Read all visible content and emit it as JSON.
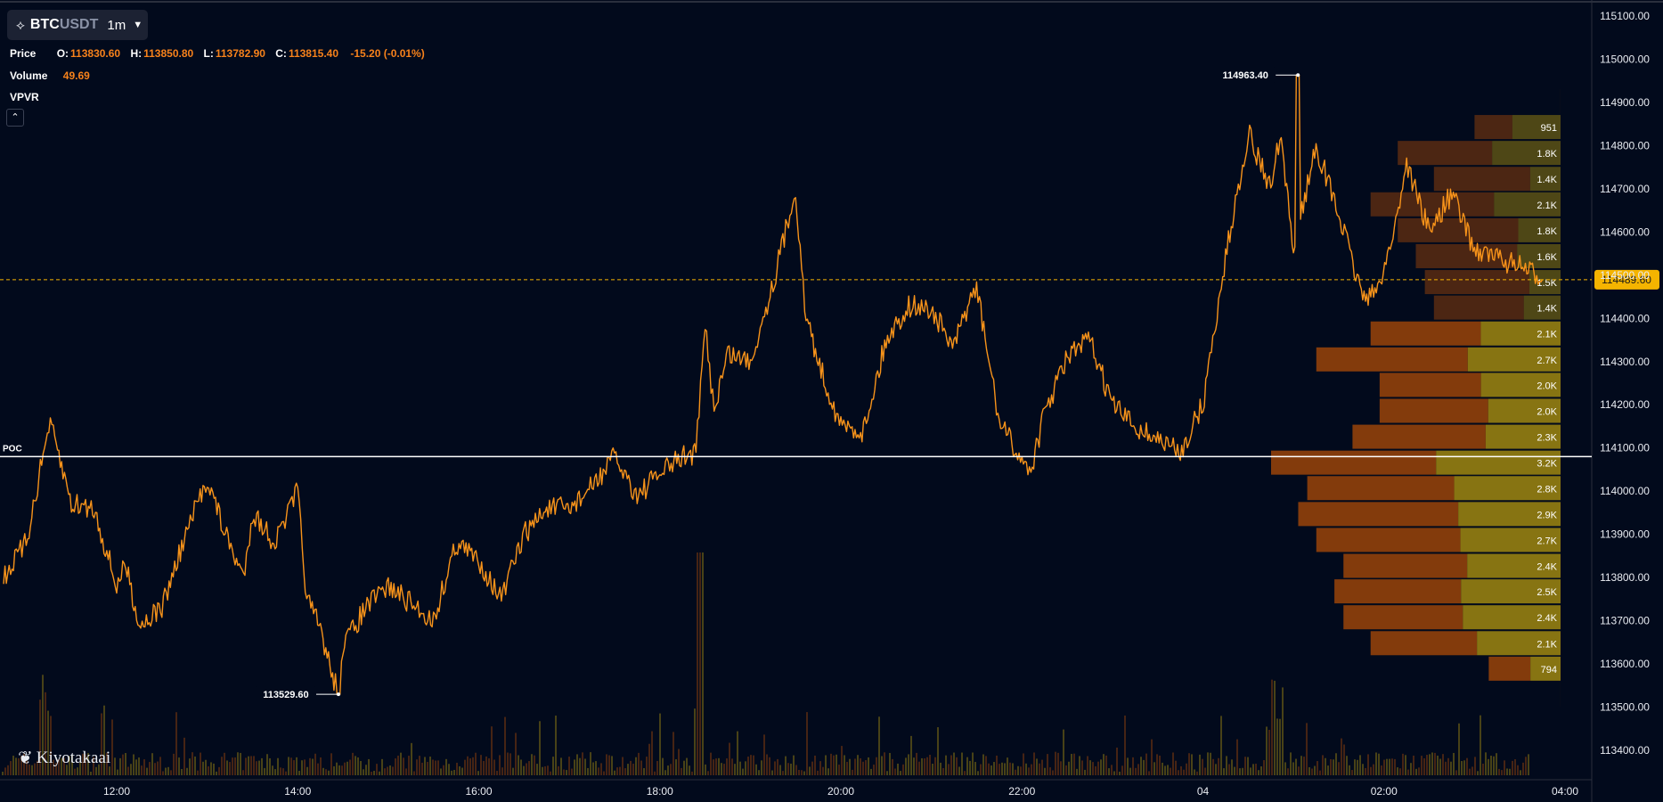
{
  "header": {
    "symbol_base": "BTC",
    "symbol_quote": "USDT",
    "interval": "1m"
  },
  "legend": {
    "price_label": "Price",
    "open_key": "O:",
    "open": "113830.60",
    "high_key": "H:",
    "high": "113850.80",
    "low_key": "L:",
    "low": "113782.90",
    "close_key": "C:",
    "close": "113815.40",
    "change": "-15.20 (-0.01%)",
    "volume_label": "Volume",
    "volume": "49.69",
    "vpvr_label": "VPVR"
  },
  "branding": {
    "logo_text": "Kiyotakaai"
  },
  "colors": {
    "background": "#020a1c",
    "price_line": "#f7931a",
    "accent": "#f7821b",
    "vpvr_up": "#8e7a12",
    "vpvr_down": "#8a3e0c",
    "current_price_badge": "#f5b400"
  },
  "chart_data": {
    "type": "line",
    "title": "",
    "xlabel": "",
    "ylabel": "",
    "ylim": [
      113350,
      115100
    ],
    "y_ticks": [
      115100,
      115000,
      114900,
      114800,
      114700,
      114600,
      114500,
      114400,
      114300,
      114200,
      114100,
      114000,
      113900,
      113800,
      113700,
      113600,
      113500,
      113400
    ],
    "y_tick_labels": [
      "115100.00",
      "115000.00",
      "114900.00",
      "114800.00",
      "114700.00",
      "114600.00",
      "114500.00",
      "114400.00",
      "114300.00",
      "114200.00",
      "114100.00",
      "114000.00",
      "113900.00",
      "113800.00",
      "113700.00",
      "113600.00",
      "113500.00",
      "113400.00"
    ],
    "x_tick_labels": [
      "12:00",
      "14:00",
      "16:00",
      "18:00",
      "20:00",
      "22:00",
      "04",
      "02:00",
      "04:00"
    ],
    "x_tick_hours": [
      12,
      14,
      16,
      18,
      20,
      22,
      24,
      26,
      28
    ],
    "x_range_hours": [
      10.75,
      28.45
    ],
    "series": [
      {
        "x_hours": [
          10.75,
          11.0,
          11.25,
          11.3,
          11.5,
          11.75,
          12.0,
          12.1,
          12.25,
          12.5,
          12.75,
          13.0,
          13.2,
          13.4,
          13.5,
          13.75,
          14.0,
          14.1,
          14.25,
          14.4,
          14.5,
          14.75,
          15.0,
          15.5,
          15.75,
          16.0,
          16.25,
          16.5,
          16.75,
          17.0,
          17.25,
          17.5,
          17.75,
          18.0,
          18.25,
          18.4,
          18.5,
          18.6,
          18.75,
          19.0,
          19.25,
          19.5,
          19.6,
          19.75,
          20.0,
          20.25,
          20.5,
          20.75,
          21.0,
          21.25,
          21.4,
          21.5,
          21.75,
          22.0,
          22.1,
          22.25,
          22.5,
          22.75,
          23.0,
          23.25,
          23.5,
          23.75,
          24.0,
          24.25,
          24.5,
          24.75,
          24.85,
          25.0,
          25.25,
          25.5,
          25.75,
          25.9,
          26.1,
          26.25,
          26.5,
          26.75,
          27.0,
          27.25,
          27.5,
          27.75
        ],
        "y": [
          113800,
          113880,
          114150,
          114130,
          113970,
          113960,
          113780,
          113830,
          113690,
          113730,
          113890,
          114030,
          113900,
          113800,
          113950,
          113880,
          114000,
          113750,
          113680,
          113560,
          113640,
          113730,
          113780,
          113700,
          113880,
          113840,
          113750,
          113900,
          113960,
          113960,
          114010,
          114080,
          113990,
          114040,
          114080,
          114090,
          114380,
          114190,
          114320,
          114300,
          114480,
          114700,
          114420,
          114300,
          114150,
          114140,
          114350,
          114430,
          114420,
          114330,
          114430,
          114470,
          114160,
          114070,
          114050,
          114180,
          114310,
          114350,
          114200,
          114150,
          114120,
          114090,
          114200,
          114540,
          114830,
          114700,
          114820,
          114560,
          114800,
          114640,
          114460,
          114450,
          114590,
          114760,
          114600,
          114690,
          114560,
          114540,
          114520,
          114489.6
        ],
        "high_label": "114963.40",
        "high_value": 114963.4,
        "high_x_hour": 25.05,
        "low_label": "113529.60",
        "low_value": 113529.6,
        "low_x_hour": 14.45
      }
    ],
    "current_price": 114489.6,
    "current_price_label": "114489.60",
    "poc_label": "POC",
    "poc_price": 114080,
    "vpvr": {
      "bin_prices": [
        114902,
        114842,
        114782,
        114722,
        114663,
        114603,
        114543,
        114483,
        114424,
        114364,
        114304,
        114245,
        114185,
        114125,
        114065,
        114006,
        113946,
        113886,
        113826,
        113767,
        113707,
        113647,
        113588,
        113528
      ],
      "totals": [
        0.8,
        951,
        1800,
        1400,
        2100,
        1800,
        1600,
        1500,
        1400,
        2100,
        2700,
        2000,
        2000,
        2300,
        3200,
        2800,
        2900,
        2700,
        2400,
        2500,
        2400,
        2100,
        794,
        0.4
      ],
      "labels": [
        "",
        "951",
        "1.8K",
        "1.4K",
        "2.1K",
        "1.8K",
        "1.6K",
        "1.5K",
        "1.4K",
        "2.1K",
        "2.7K",
        "2.0K",
        "2.0K",
        "2.3K",
        "3.2K",
        "2.8K",
        "2.9K",
        "2.7K",
        "2.4K",
        "2.5K",
        "2.4K",
        "2.1K",
        "794",
        ""
      ],
      "up_fraction": [
        0.4,
        0.56,
        0.42,
        0.24,
        0.35,
        0.26,
        0.3,
        0.23,
        0.29,
        0.42,
        0.38,
        0.44,
        0.4,
        0.36,
        0.43,
        0.42,
        0.39,
        0.41,
        0.43,
        0.44,
        0.45,
        0.44,
        0.42,
        0.5
      ],
      "max_total": 3200
    }
  }
}
